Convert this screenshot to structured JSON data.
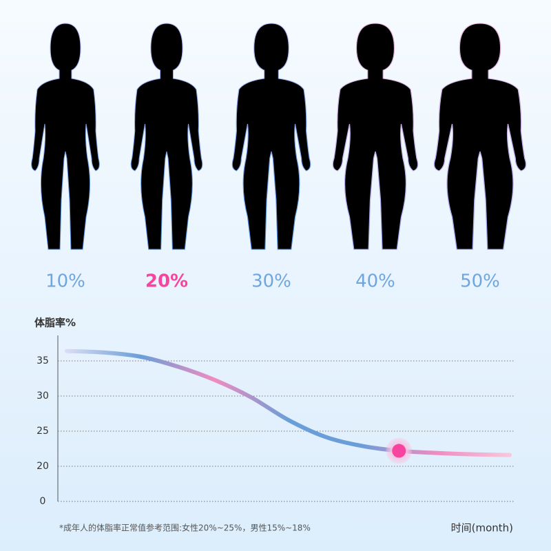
{
  "figures": {
    "labels": [
      "10%",
      "20%",
      "30%",
      "40%",
      "50%"
    ],
    "color": "#6fa6de",
    "highlight_index": 1,
    "highlight_color": "#f7449f"
  },
  "chart_data": {
    "type": "line",
    "y_label": "体脂率%",
    "x_label": "时间(month)",
    "note": "*成年人的体脂率正常值参考范围:女性20%~25%，男性15%~18%",
    "categories": [
      null,
      null,
      null,
      null,
      null,
      null,
      null,
      null,
      null,
      null,
      null,
      null,
      null
    ],
    "values": [
      36.4,
      36.2,
      35.6,
      34.2,
      32.3,
      29.8,
      26.6,
      24.2,
      22.9,
      22.2,
      21.9,
      21.7,
      21.6
    ],
    "colors": [
      "#d9dcf2",
      "#6a9ed8",
      "#f08cc0",
      "#6a9ed8",
      "#6a9ed8",
      "#f08cc0",
      "#f7c7dd"
    ],
    "highlight_index": 9,
    "highlight_color": "#f7449f",
    "ylim": [
      0,
      38.5
    ],
    "yticks": [
      0,
      20,
      25,
      30,
      35
    ],
    "grid": true
  }
}
